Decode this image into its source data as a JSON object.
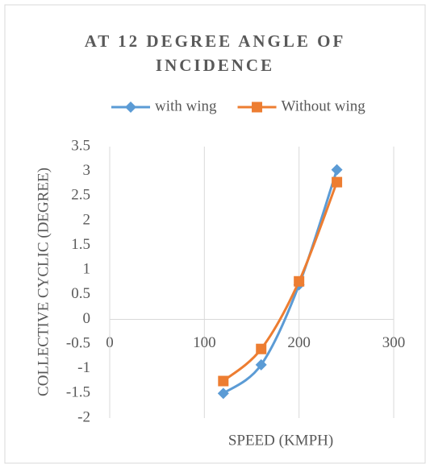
{
  "chart_data": {
    "type": "line",
    "title": "AT 12 DEGREE ANGLE OF INCIDENCE",
    "x_label": "SPEED (KMPH)",
    "y_label": "COLLECTIVE CYCLIC (DEGREE)",
    "x": [
      120,
      160,
      200,
      240
    ],
    "series": [
      {
        "name": "with wing",
        "color": "#5b9bd5",
        "marker": "diamond",
        "values": [
          -1.5,
          -0.92,
          0.7,
          3.03
        ]
      },
      {
        "name": "Without wing",
        "color": "#ed7d31",
        "marker": "square",
        "values": [
          -1.25,
          -0.6,
          0.77,
          2.78
        ]
      }
    ],
    "xlim": [
      0,
      300
    ],
    "xticks": [
      0,
      100,
      200,
      300
    ],
    "ylim": [
      -2,
      3.5
    ],
    "yticks": [
      -2,
      -1.5,
      -1,
      -0.5,
      0,
      0.5,
      1,
      1.5,
      2,
      2.5,
      3,
      3.5
    ],
    "grid": true,
    "smooth": true,
    "legend": "top"
  }
}
